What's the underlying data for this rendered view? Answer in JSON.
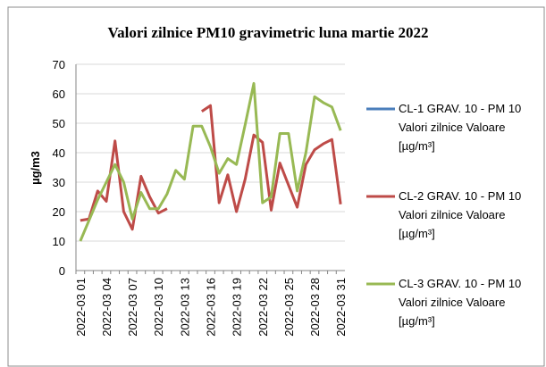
{
  "chart_data": {
    "type": "line",
    "title": "Valori zilnice PM10 gravimetric luna martie 2022",
    "y_label": "µg/m3",
    "categories": [
      "2022-03 01",
      null,
      null,
      "2022-03 04",
      null,
      null,
      "2022-03 07",
      null,
      null,
      "2022-03 10",
      null,
      null,
      "2022-03 13",
      null,
      null,
      "2022-03 16",
      null,
      null,
      "2022-03 19",
      null,
      null,
      "2022-03 22",
      null,
      null,
      "2022-03 25",
      null,
      null,
      "2022-03 28",
      null,
      null,
      "2022-03 31"
    ],
    "series": [
      {
        "name": "CL-1 GRAV. 10 - PM 10 Valori zilnice Valoare [µg/m³]",
        "color": "#4a7ebb",
        "values": [
          null,
          null,
          null,
          null,
          null,
          null,
          null,
          null,
          null,
          null,
          null,
          null,
          null,
          null,
          null,
          null,
          null,
          null,
          null,
          null,
          null,
          null,
          null,
          null,
          null,
          null,
          null,
          null,
          null,
          null,
          null
        ]
      },
      {
        "name": "CL-2 GRAV. 10 - PM 10 Valori zilnice Valoare [µg/m³]",
        "color": "#be4b48",
        "values": [
          17,
          17.5,
          27,
          23.5,
          44,
          20,
          14,
          32,
          25,
          19.5,
          21,
          null,
          null,
          null,
          54,
          56,
          23,
          32.5,
          20,
          31,
          46,
          43.5,
          20.5,
          36.5,
          29,
          21.5,
          36,
          41,
          43,
          44.5,
          22.5
        ]
      },
      {
        "name": "CL-3 GRAV. 10 - PM 10 Valori zilnice Valoare [µg/m³]",
        "color": "#98b954",
        "values": [
          10,
          17,
          24,
          30,
          36,
          30,
          17.5,
          26.5,
          21,
          21,
          26,
          34,
          31,
          49,
          49,
          42,
          33,
          38,
          36,
          49.5,
          63.5,
          23,
          25,
          46.5,
          46.5,
          27,
          40,
          59,
          57,
          55.5,
          47.5
        ]
      }
    ],
    "ylim": [
      0,
      70
    ],
    "yticks": [
      0,
      10,
      20,
      30,
      40,
      50,
      60,
      70
    ],
    "grid": true,
    "legend": "right"
  }
}
